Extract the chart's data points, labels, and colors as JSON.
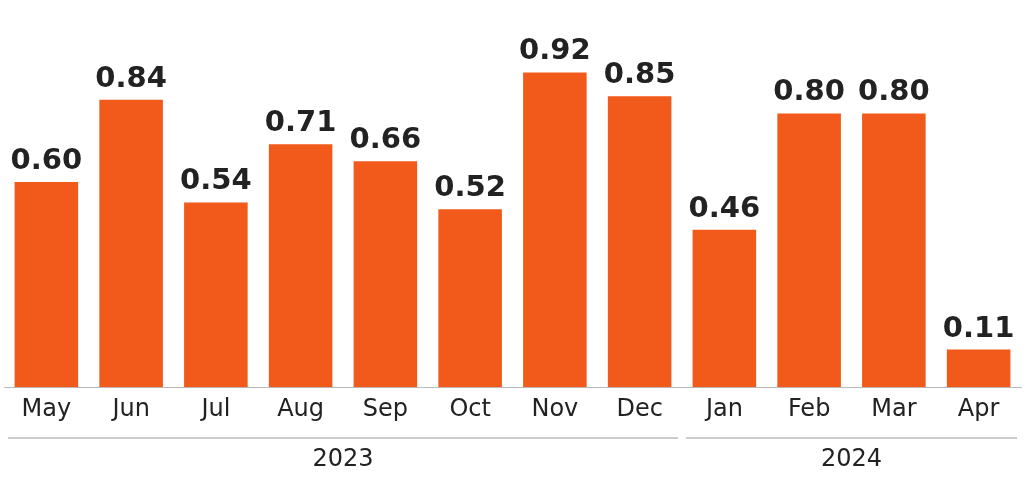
{
  "chart_data": {
    "type": "bar",
    "categories": [
      "May",
      "Jun",
      "Jul",
      "Aug",
      "Sep",
      "Oct",
      "Nov",
      "Dec",
      "Jan",
      "Feb",
      "Mar",
      "Apr"
    ],
    "values": [
      0.6,
      0.84,
      0.54,
      0.71,
      0.66,
      0.52,
      0.92,
      0.85,
      0.46,
      0.8,
      0.8,
      0.11
    ],
    "value_labels": [
      "0.60",
      "0.84",
      "0.54",
      "0.71",
      "0.66",
      "0.52",
      "0.92",
      "0.85",
      "0.46",
      "0.80",
      "0.80",
      "0.11"
    ],
    "color": "#f15a1b",
    "grid": false,
    "legend": false,
    "annotations": [
      "2023",
      "2024"
    ]
  }
}
